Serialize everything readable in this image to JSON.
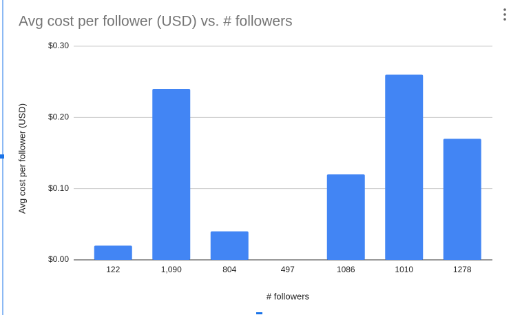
{
  "chart_data": {
    "type": "bar",
    "title": "Avg cost per follower (USD) vs. # followers",
    "x_label": "# followers",
    "y_label": "Avg cost per follower (USD)",
    "categories": [
      "122",
      "1,090",
      "804",
      "497",
      "1086",
      "1010",
      "1278"
    ],
    "values": [
      0.02,
      0.24,
      0.04,
      0,
      0.12,
      0.26,
      0.17
    ],
    "color": "#4285f4",
    "ylim": [
      0,
      0.3
    ],
    "yticks": [
      {
        "value": 0,
        "label": "$0.00"
      },
      {
        "value": 0.1,
        "label": "$0.10"
      },
      {
        "value": 0.2,
        "label": "$0.20"
      },
      {
        "value": 0.3,
        "label": "$0.30"
      }
    ],
    "grid": true
  }
}
